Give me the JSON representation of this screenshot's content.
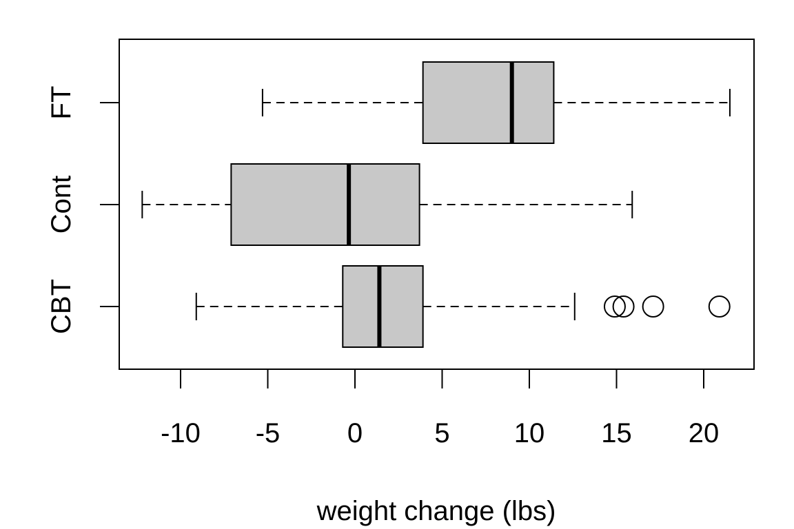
{
  "chart_data": {
    "type": "boxplot",
    "orientation": "horizontal",
    "title": "",
    "xlabel": "weight change (lbs)",
    "ylabel": "",
    "xlim": [
      -13.5,
      22.8
    ],
    "xticks": [
      -10,
      -5,
      0,
      5,
      10,
      15,
      20
    ],
    "xtick_labels": [
      "-10",
      "-5",
      "0",
      "5",
      "10",
      "15",
      "20"
    ],
    "grid": false,
    "legend": "none",
    "box_fill": "#c8c8c8",
    "line_color": "#000000",
    "categories": [
      "CBT",
      "Cont",
      "FT"
    ],
    "boxes": [
      {
        "category": "CBT",
        "whisker_low": -9.1,
        "q1": -0.7,
        "median": 1.4,
        "q3": 3.9,
        "whisker_high": 12.6,
        "outliers": [
          14.9,
          15.4,
          17.1,
          20.9
        ]
      },
      {
        "category": "Cont",
        "whisker_low": -12.2,
        "q1": -7.1,
        "median": -0.35,
        "q3": 3.7,
        "whisker_high": 15.9,
        "outliers": []
      },
      {
        "category": "FT",
        "whisker_low": -5.3,
        "q1": 3.9,
        "median": 9.0,
        "q3": 11.4,
        "whisker_high": 21.5,
        "outliers": []
      }
    ]
  }
}
